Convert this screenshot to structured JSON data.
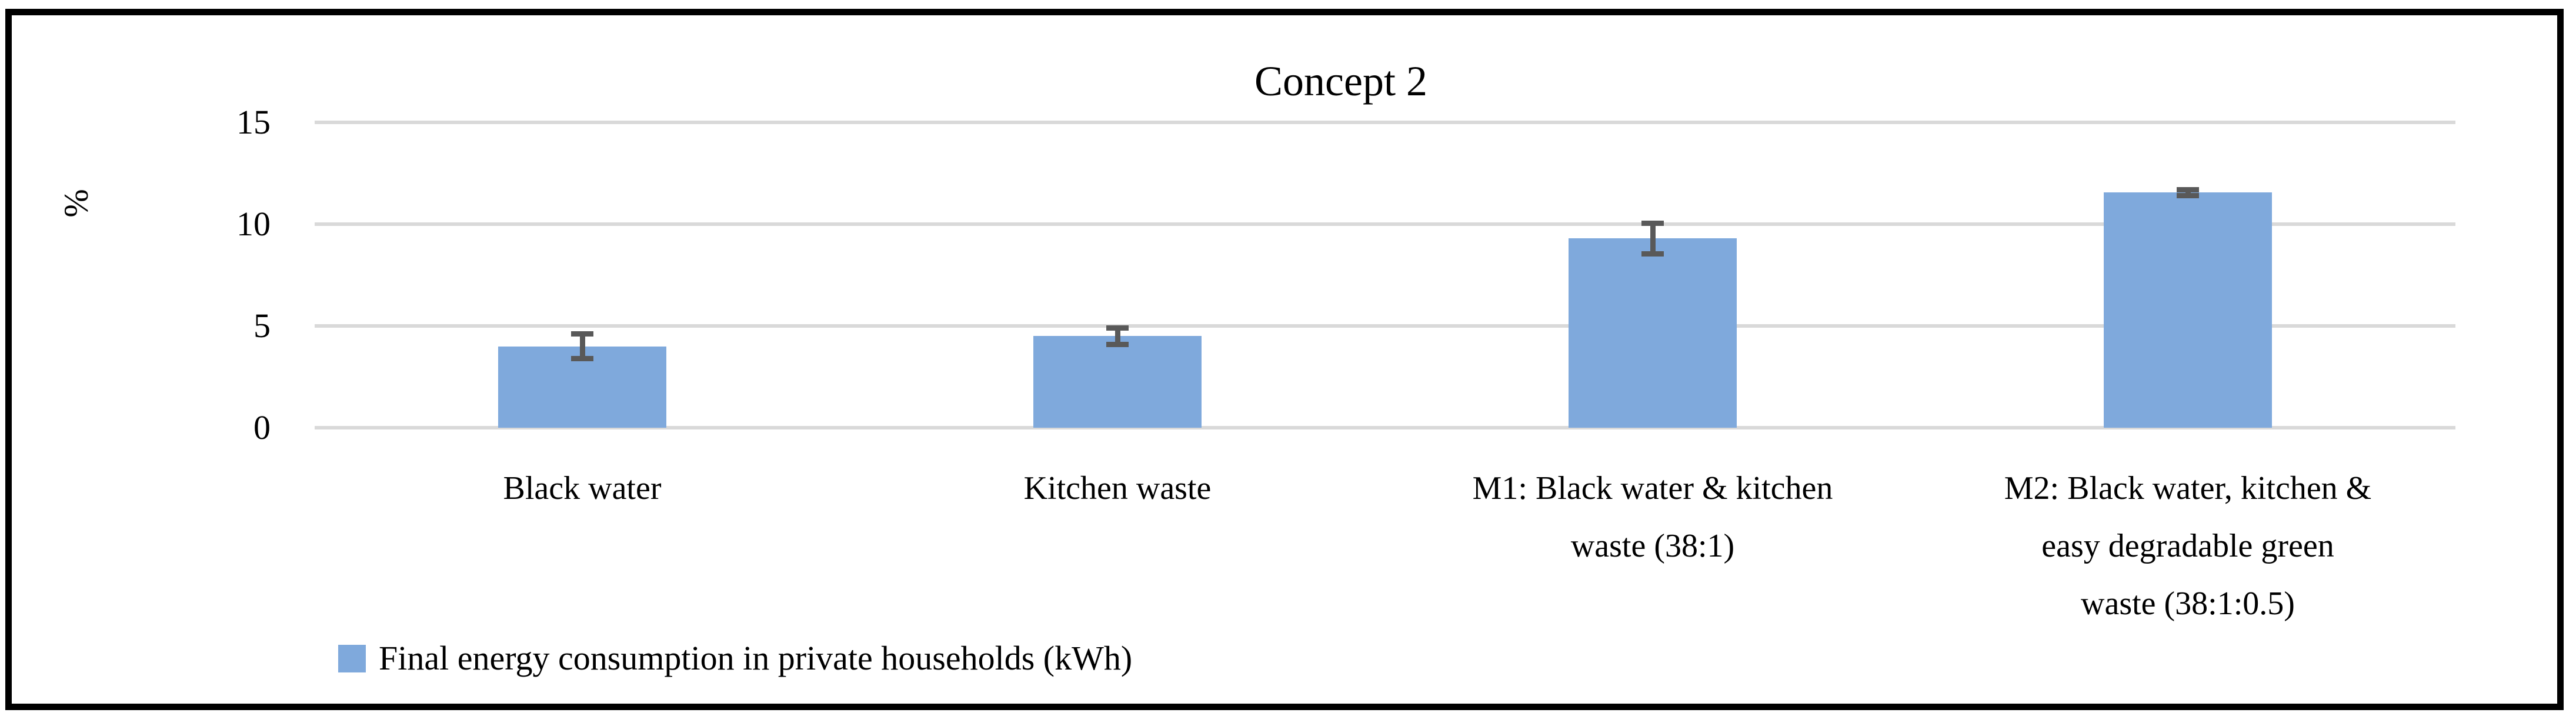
{
  "chart_data": {
    "type": "bar",
    "title": "Concept 2",
    "ylabel": "%",
    "categories": [
      "Black water",
      "Kitchen waste",
      "M1: Black water & kitchen\nwaste (38:1)",
      "M2: Black water, kitchen &\neasy degradable green\nwaste (38:1:0.5)"
    ],
    "series": [
      {
        "name": "Final energy consumption in private households (kWh)",
        "values": [
          4.0,
          4.5,
          9.3,
          11.55
        ],
        "errors": [
          0.6,
          0.4,
          0.75,
          0.15
        ]
      }
    ],
    "ylim": [
      0,
      15
    ],
    "yticks": [
      0,
      5,
      10,
      15
    ],
    "grid": "horizontal",
    "legend_position": "bottom-left",
    "colors": {
      "bar": "#7FA9DC",
      "error_bar": "#595959",
      "gridline": "#D9D9D9",
      "border": "#000000",
      "text": "#000000"
    }
  },
  "legend": {
    "label": "Final energy consumption in private households (kWh)"
  }
}
